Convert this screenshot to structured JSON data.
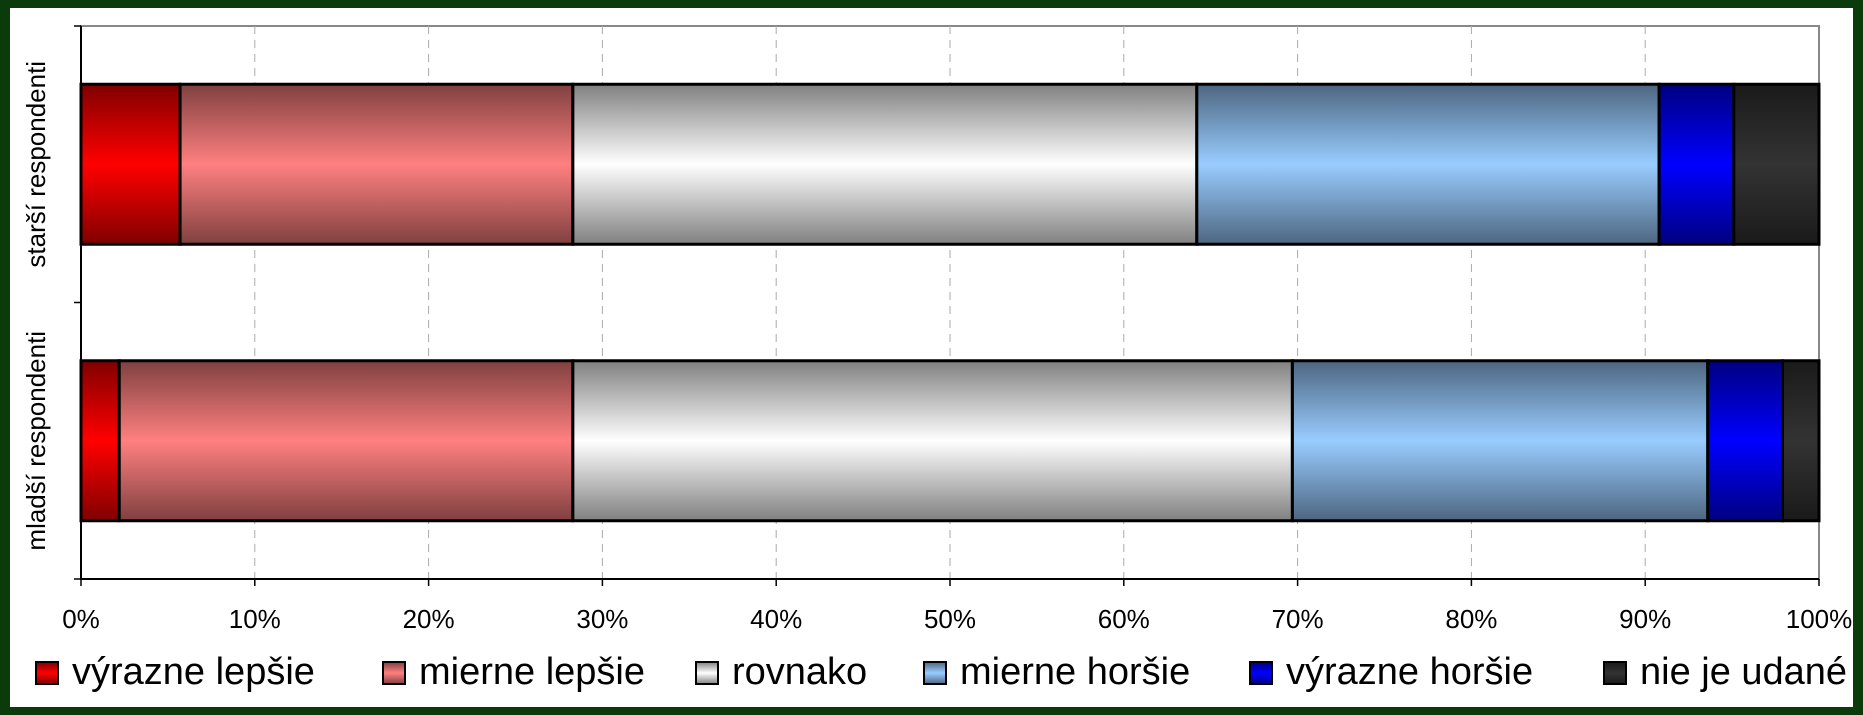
{
  "chart_data": {
    "type": "stacked-bar-horizontal",
    "categories": [
      "starší respondenti",
      "mladší respondenti"
    ],
    "series": [
      {
        "name": "výrazne lepšie",
        "color": "#ff0000",
        "values": [
          5.7,
          2.2
        ]
      },
      {
        "name": "mierne lepšie",
        "color": "#ff8080",
        "values": [
          22.6,
          26.1
        ]
      },
      {
        "name": "rovnako",
        "color": "#ffffff",
        "values": [
          35.9,
          41.4
        ]
      },
      {
        "name": "mierne horšie",
        "color": "#99ccff",
        "values": [
          26.6,
          23.9
        ]
      },
      {
        "name": "výrazne horšie",
        "color": "#0000ff",
        "values": [
          4.3,
          4.3
        ]
      },
      {
        "name": "nie je udané",
        "color": "#333333",
        "values": [
          4.9,
          2.1
        ]
      }
    ],
    "xlim": [
      0,
      100
    ],
    "xticks": [
      {
        "value": 0,
        "label": "0%"
      },
      {
        "value": 10,
        "label": "10%"
      },
      {
        "value": 20,
        "label": "20%"
      },
      {
        "value": 30,
        "label": "30%"
      },
      {
        "value": 40,
        "label": "40%"
      },
      {
        "value": 50,
        "label": "50%"
      },
      {
        "value": 60,
        "label": "60%"
      },
      {
        "value": 70,
        "label": "70%"
      },
      {
        "value": 80,
        "label": "80%"
      },
      {
        "value": 90,
        "label": "90%"
      },
      {
        "value": 100,
        "label": "100%"
      }
    ],
    "grid": true,
    "legend": "bottom"
  }
}
